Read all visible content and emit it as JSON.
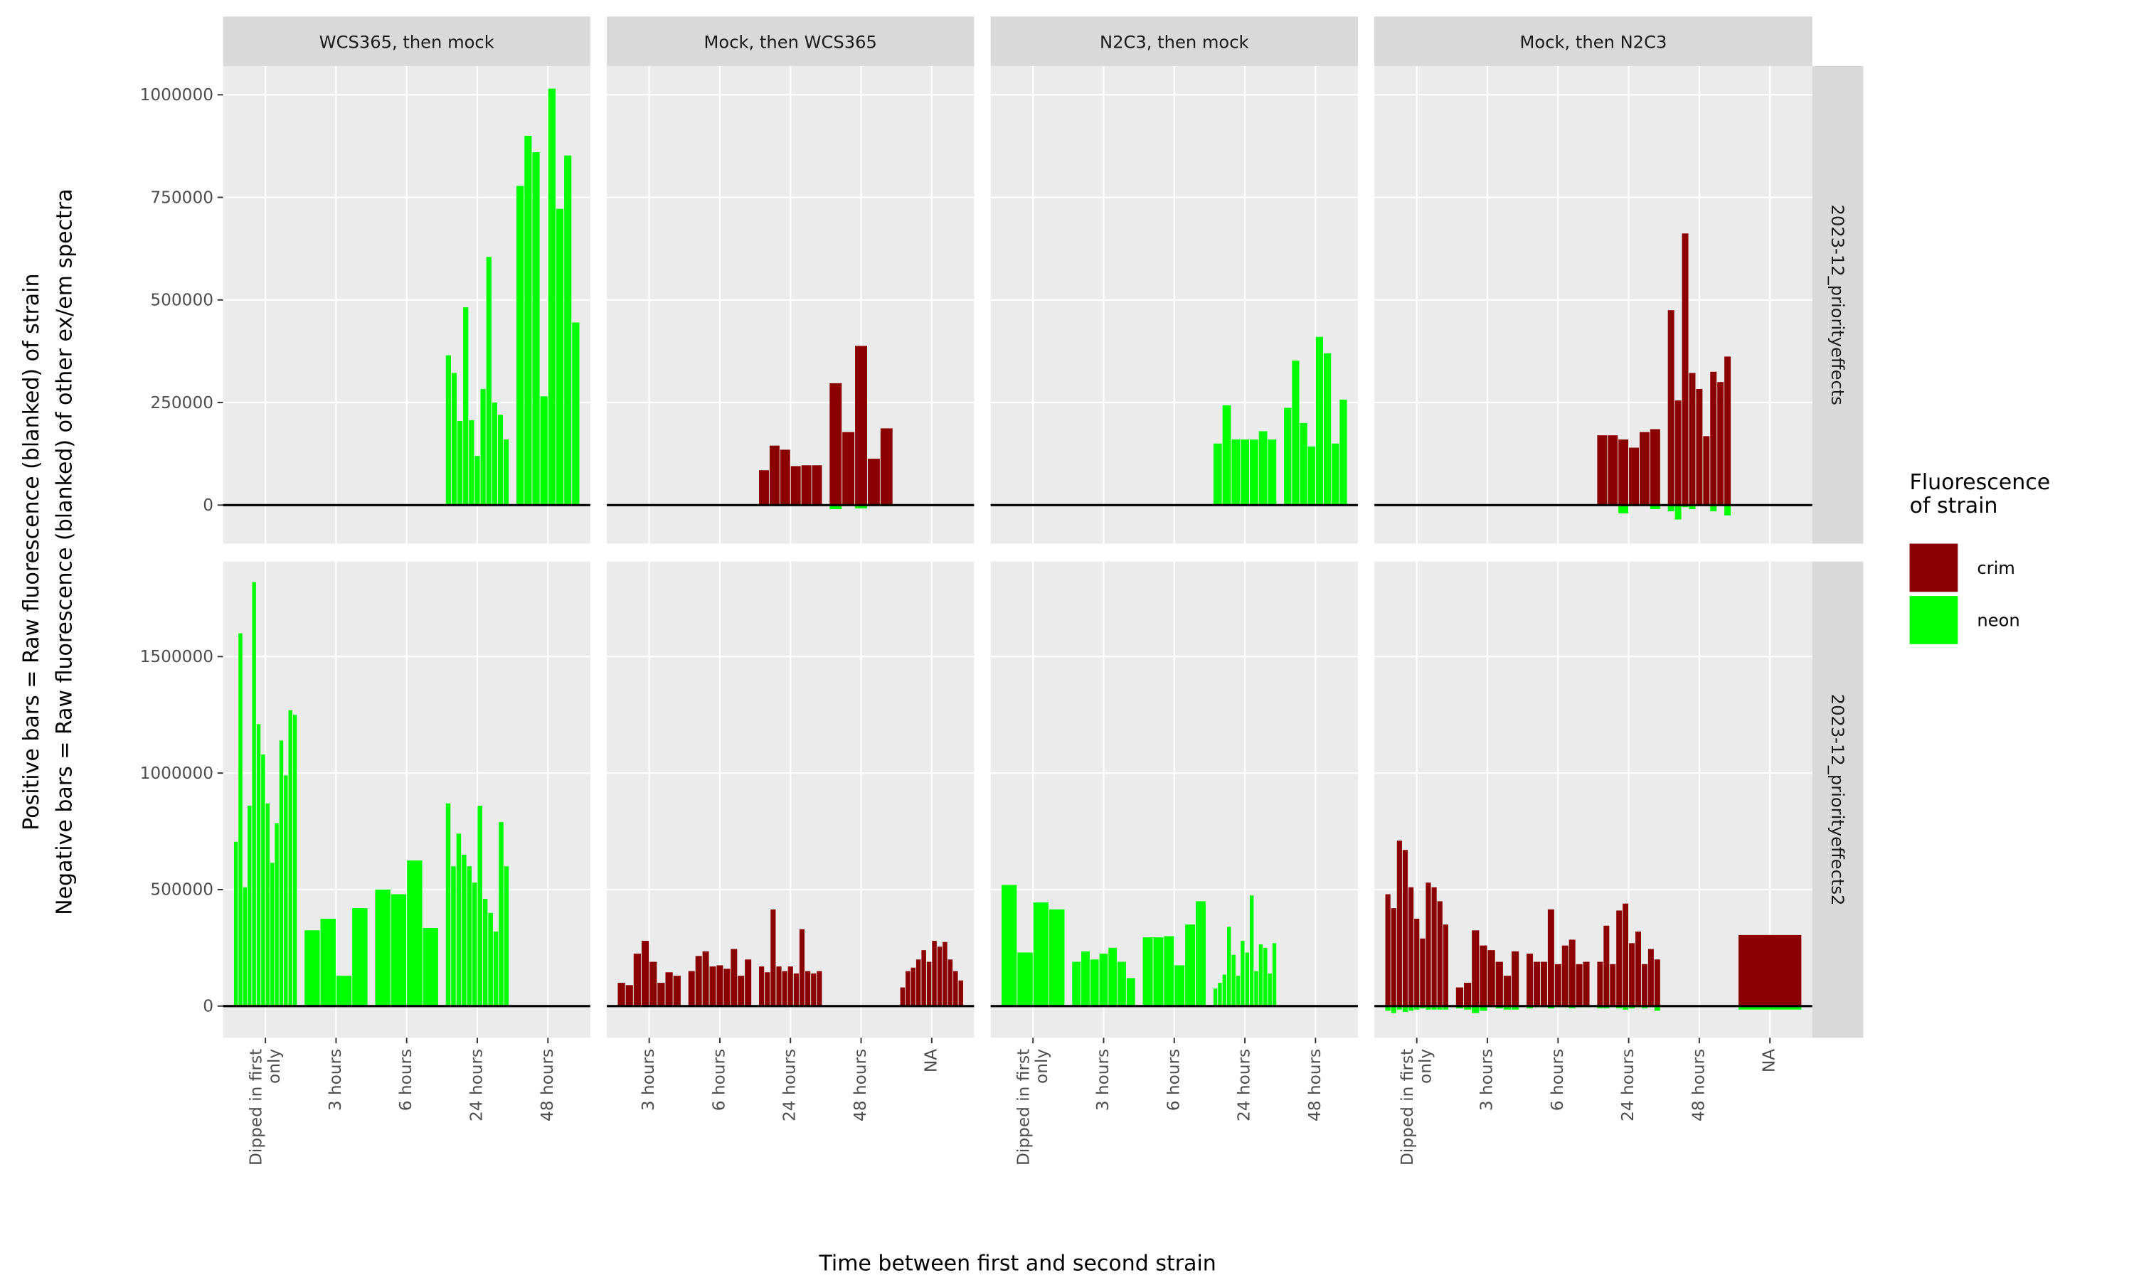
{
  "chart_data": {
    "type": "bar",
    "x_label": "Time between first and second strain",
    "y_label": [
      "Positive bars = Raw fluorescence (blanked) of strain",
      "Negative bars = Raw fluorescence (blanked) of other ex/em spectra"
    ],
    "legend_title": "Fluorescence\nof strain",
    "hline": 0,
    "grid": true,
    "columns": [
      {
        "label": "WCS365, then mock",
        "categories": [
          "Dipped in first\nonly",
          "3 hours",
          "6 hours",
          "24 hours",
          "48 hours"
        ]
      },
      {
        "label": "Mock, then WCS365",
        "categories": [
          "3 hours",
          "6 hours",
          "24 hours",
          "48 hours",
          "NA"
        ]
      },
      {
        "label": "N2C3, then mock",
        "categories": [
          "Dipped in first\nonly",
          "3 hours",
          "6 hours",
          "24 hours",
          "48 hours"
        ]
      },
      {
        "label": "Mock, then N2C3",
        "categories": [
          "Dipped in first\nonly",
          "3 hours",
          "6 hours",
          "24 hours",
          "48 hours",
          "NA"
        ]
      }
    ],
    "rows": [
      {
        "label": "2023-12_priorityeffects",
        "ylim": [
          -94000,
          1070000
        ],
        "yticks": [
          0,
          250000,
          500000,
          750000,
          1000000
        ]
      },
      {
        "label": "2023-12_priorityeffects2",
        "ylim": [
          -136000,
          1908000
        ],
        "yticks": [
          0,
          500000,
          1000000,
          1500000
        ]
      }
    ],
    "series": [
      {
        "name": "crim",
        "color": "#8b0000",
        "values": [
          [
            [
              [],
              [],
              [],
              [],
              []
            ],
            [
              [],
              [],
              [
                85000,
                145000,
                135000,
                95000,
                97000,
                97000
              ],
              [
                297000,
                178000,
                388000,
                113000,
                187000
              ],
              []
            ],
            [
              [],
              [],
              [],
              [],
              []
            ],
            [
              [],
              [],
              [],
              [
                170000,
                170000,
                160000,
                140000,
                178000,
                185000
              ],
              [
                475000,
                255000,
                662000,
                322000,
                283000,
                168000,
                325000,
                300000,
                362000
              ],
              []
            ]
          ],
          [
            [
              [],
              [],
              [],
              [],
              []
            ],
            [
              [
                100000,
                90000,
                225000,
                280000,
                190000,
                100000,
                145000,
                130000
              ],
              [
                150000,
                215000,
                235000,
                170000,
                175000,
                160000,
                245000,
                130000,
                200000
              ],
              [
                170000,
                145000,
                415000,
                170000,
                150000,
                170000,
                140000,
                330000,
                150000,
                140000,
                150000
              ],
              [],
              [
                80000,
                150000,
                165000,
                200000,
                240000,
                190000,
                280000,
                255000,
                275000,
                200000,
                150000,
                110000
              ]
            ],
            [
              [],
              [],
              [],
              [],
              []
            ],
            [
              [
                480000,
                420000,
                710000,
                670000,
                510000,
                375000,
                290000,
                530000,
                510000,
                450000,
                350000
              ],
              [
                80000,
                100000,
                325000,
                260000,
                240000,
                190000,
                130000,
                235000
              ],
              [
                225000,
                190000,
                190000,
                415000,
                180000,
                260000,
                285000,
                180000,
                190000
              ],
              [
                190000,
                345000,
                180000,
                410000,
                440000,
                270000,
                320000,
                180000,
                245000,
                200000
              ],
              [],
              [
                305000
              ]
            ]
          ]
        ]
      },
      {
        "name": "neon",
        "color": "#00ff00",
        "values": [
          [
            [
              [],
              [],
              [],
              [
                365000,
                322000,
                205000,
                482000,
                207000,
                120000,
                283000,
                605000,
                250000,
                220000,
                160000
              ],
              [
                778000,
                900000,
                860000,
                265000,
                1015000,
                722000,
                852000,
                445000
              ]
            ],
            [
              [],
              [],
              [],
              [
                -10000,
                0,
                -8000,
                0,
                -3000
              ],
              []
            ],
            [
              [],
              [],
              [],
              [
                150000,
                243000,
                160000,
                160000,
                160000,
                180000,
                160000
              ],
              [
                237000,
                352000,
                200000,
                143000,
                410000,
                370000,
                150000,
                257000
              ]
            ],
            [
              [],
              [],
              [],
              [
                0,
                0,
                -20000,
                0,
                0,
                -10000
              ],
              [
                -15000,
                -35000,
                -5000,
                -10000,
                0,
                0,
                -15000,
                0,
                -25000
              ],
              []
            ]
          ],
          [
            [
              [
                705000,
                1600000,
                510000,
                860000,
                1820000,
                1210000,
                1080000,
                870000,
                615000,
                785000,
                1140000,
                990000,
                1270000,
                1250000
              ],
              [
                325000,
                375000,
                130000,
                420000
              ],
              [
                500000,
                480000,
                625000,
                335000
              ],
              [
                870000,
                600000,
                740000,
                650000,
                600000,
                530000,
                860000,
                460000,
                400000,
                320000,
                790000,
                600000
              ],
              []
            ],
            [
              [],
              [],
              [],
              [],
              []
            ],
            [
              [
                520000,
                230000,
                445000,
                415000
              ],
              [
                190000,
                235000,
                200000,
                225000,
                250000,
                190000,
                120000
              ],
              [
                295000,
                295000,
                300000,
                175000,
                350000,
                450000
              ],
              [
                75000,
                100000,
                135000,
                340000,
                220000,
                130000,
                280000,
                230000,
                475000,
                150000,
                265000,
                250000,
                140000,
                270000
              ],
              []
            ],
            [
              [
                -20000,
                -30000,
                -15000,
                -25000,
                -20000,
                -15000,
                -10000,
                -15000,
                -15000,
                -15000,
                -15000
              ],
              [
                -10000,
                -15000,
                -30000,
                -20000,
                -5000,
                -10000,
                -15000,
                -15000
              ],
              [
                -10000,
                -5000,
                -5000,
                -10000,
                -5000,
                -5000,
                -10000,
                -5000,
                -5000
              ],
              [
                -10000,
                -10000,
                -5000,
                -10000,
                -15000,
                -10000,
                -5000,
                -10000,
                -5000,
                -20000
              ],
              [],
              [
                -15000
              ]
            ]
          ]
        ]
      }
    ]
  }
}
